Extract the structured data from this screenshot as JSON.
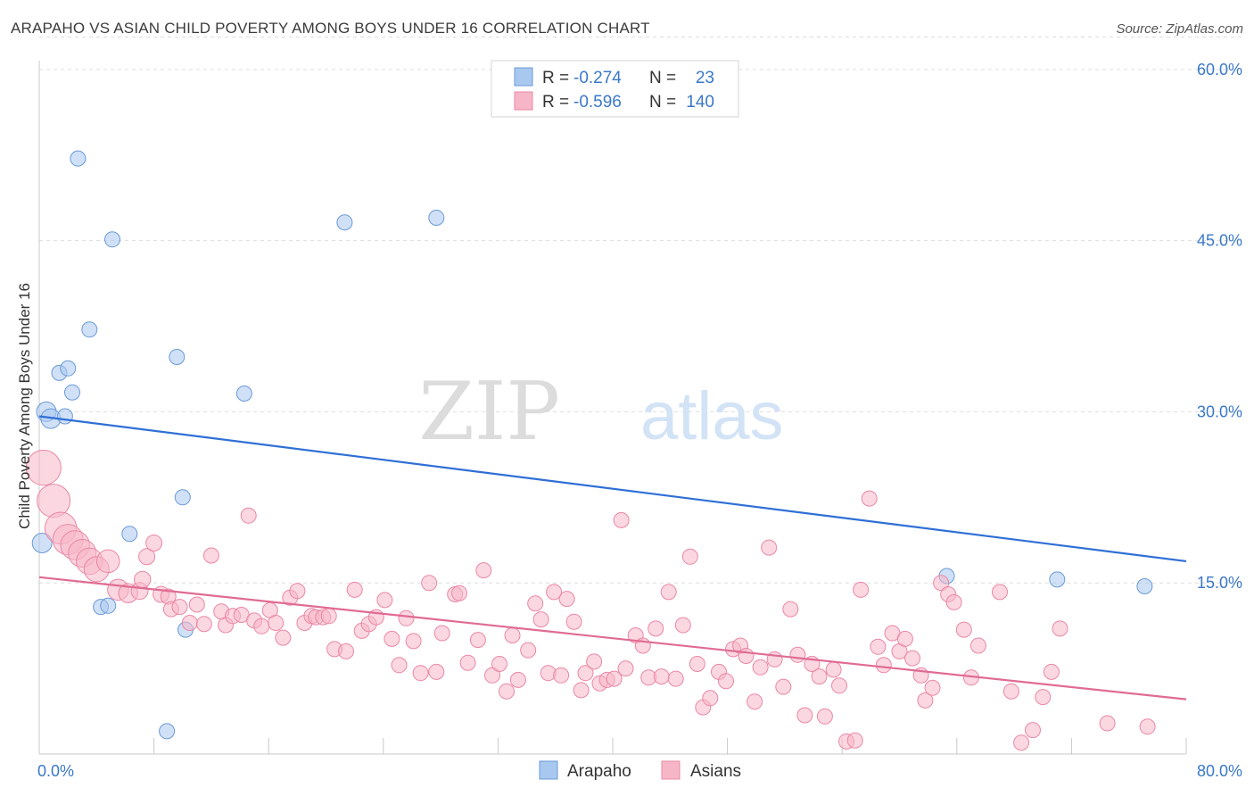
{
  "title": "ARAPAHO VS ASIAN CHILD POVERTY AMONG BOYS UNDER 16 CORRELATION CHART",
  "source": "Source: ZipAtlas.com",
  "watermark": {
    "zip": "ZIP",
    "atlas": "atlas"
  },
  "legend": {
    "entries": [
      {
        "name": "Arapaho",
        "r_label": "R =",
        "r_value": "-0.274",
        "n_label": "N =",
        "n_value": "23",
        "color": "#a9c8f0"
      },
      {
        "name": "Asians",
        "r_label": "R =",
        "r_value": "-0.596",
        "n_label": "N =",
        "n_value": "140",
        "color": "#f7b6c8"
      }
    ]
  },
  "chart_data": {
    "type": "scatter",
    "title": "ARAPAHO VS ASIAN CHILD POVERTY AMONG BOYS UNDER 16 CORRELATION CHART",
    "xlabel": "",
    "ylabel": "Child Poverty Among Boys Under 16",
    "xlim": [
      0,
      80
    ],
    "ylim": [
      0,
      63
    ],
    "y_ticks": [
      15,
      30,
      45,
      60
    ],
    "y_tick_labels": [
      "15.0%",
      "30.0%",
      "45.0%",
      "60.0%"
    ],
    "x_tick_labels": [
      "0.0%",
      "80.0%"
    ],
    "grid": true,
    "legend_position": "top-center",
    "series": [
      {
        "name": "Arapaho",
        "color": "#a9c8f0",
        "stroke": "#6b9ad8",
        "trend": {
          "x": [
            0,
            80
          ],
          "y": [
            29.6,
            16.9
          ],
          "color": "#2f6fd6"
        },
        "points": [
          [
            2.7,
            52.2
          ],
          [
            5.1,
            45.1
          ],
          [
            21.3,
            46.6
          ],
          [
            27.7,
            47.0
          ],
          [
            3.5,
            37.2
          ],
          [
            9.6,
            34.8
          ],
          [
            1.4,
            33.4
          ],
          [
            2.0,
            33.8
          ],
          [
            14.3,
            31.6
          ],
          [
            2.3,
            31.7
          ],
          [
            0.5,
            30.0
          ],
          [
            0.8,
            29.4
          ],
          [
            1.8,
            29.6
          ],
          [
            10.0,
            22.5
          ],
          [
            0.2,
            18.5
          ],
          [
            6.3,
            19.3
          ],
          [
            4.3,
            12.9
          ],
          [
            4.8,
            13.0
          ],
          [
            10.2,
            10.9
          ],
          [
            63.3,
            15.6
          ],
          [
            71.0,
            15.3
          ],
          [
            77.1,
            14.7
          ],
          [
            8.9,
            2.0
          ]
        ]
      },
      {
        "name": "Asians",
        "color": "#f7b6c8",
        "stroke": "#ea88a5",
        "trend": {
          "x": [
            0,
            80
          ],
          "y": [
            15.5,
            4.8
          ],
          "color": "#e06b93"
        },
        "points": [
          [
            0.3,
            25.1
          ],
          [
            1.0,
            22.2
          ],
          [
            1.5,
            19.8
          ],
          [
            2.0,
            18.8
          ],
          [
            2.5,
            18.3
          ],
          [
            3.0,
            17.6
          ],
          [
            3.5,
            16.9
          ],
          [
            4.0,
            16.2
          ],
          [
            4.8,
            16.9
          ],
          [
            5.5,
            14.4
          ],
          [
            6.2,
            14.1
          ],
          [
            7.0,
            14.3
          ],
          [
            7.5,
            17.3
          ],
          [
            8.0,
            18.5
          ],
          [
            7.2,
            15.3
          ],
          [
            8.5,
            14.0
          ],
          [
            9.0,
            13.8
          ],
          [
            9.2,
            12.7
          ],
          [
            9.8,
            12.9
          ],
          [
            10.5,
            11.5
          ],
          [
            11.0,
            13.1
          ],
          [
            11.5,
            11.4
          ],
          [
            12.0,
            17.4
          ],
          [
            12.7,
            12.5
          ],
          [
            13.0,
            11.3
          ],
          [
            13.5,
            12.1
          ],
          [
            14.1,
            12.2
          ],
          [
            14.6,
            20.9
          ],
          [
            15.0,
            11.7
          ],
          [
            15.5,
            11.2
          ],
          [
            16.1,
            12.6
          ],
          [
            16.5,
            11.5
          ],
          [
            17.0,
            10.2
          ],
          [
            17.5,
            13.7
          ],
          [
            18.0,
            14.3
          ],
          [
            18.5,
            11.5
          ],
          [
            19.0,
            12.1
          ],
          [
            19.3,
            12.0
          ],
          [
            19.8,
            12.0
          ],
          [
            20.2,
            12.1
          ],
          [
            20.6,
            9.2
          ],
          [
            21.4,
            9.0
          ],
          [
            22.0,
            14.4
          ],
          [
            22.5,
            10.8
          ],
          [
            23.0,
            11.4
          ],
          [
            23.5,
            12.0
          ],
          [
            24.1,
            13.5
          ],
          [
            24.6,
            10.1
          ],
          [
            25.1,
            7.8
          ],
          [
            25.6,
            11.9
          ],
          [
            26.1,
            9.9
          ],
          [
            26.6,
            7.1
          ],
          [
            27.2,
            15.0
          ],
          [
            27.7,
            7.2
          ],
          [
            28.1,
            10.6
          ],
          [
            29.0,
            14.0
          ],
          [
            29.3,
            14.1
          ],
          [
            29.9,
            8.0
          ],
          [
            30.6,
            10.0
          ],
          [
            31.0,
            16.1
          ],
          [
            31.6,
            6.9
          ],
          [
            32.1,
            7.9
          ],
          [
            32.6,
            5.5
          ],
          [
            33.0,
            10.4
          ],
          [
            33.4,
            6.5
          ],
          [
            34.1,
            9.1
          ],
          [
            34.6,
            13.2
          ],
          [
            35.0,
            11.8
          ],
          [
            35.5,
            7.1
          ],
          [
            35.9,
            14.2
          ],
          [
            36.4,
            6.9
          ],
          [
            36.8,
            13.6
          ],
          [
            37.3,
            11.6
          ],
          [
            37.8,
            5.6
          ],
          [
            38.1,
            7.1
          ],
          [
            38.7,
            8.1
          ],
          [
            39.1,
            6.2
          ],
          [
            39.6,
            6.5
          ],
          [
            40.1,
            6.6
          ],
          [
            40.6,
            20.5
          ],
          [
            40.9,
            7.5
          ],
          [
            41.6,
            10.4
          ],
          [
            42.1,
            9.5
          ],
          [
            42.5,
            6.7
          ],
          [
            43.0,
            11.0
          ],
          [
            43.4,
            6.8
          ],
          [
            43.9,
            14.2
          ],
          [
            44.4,
            6.6
          ],
          [
            44.9,
            11.3
          ],
          [
            45.4,
            17.3
          ],
          [
            45.9,
            7.9
          ],
          [
            46.3,
            4.1
          ],
          [
            46.8,
            4.9
          ],
          [
            47.4,
            7.2
          ],
          [
            47.9,
            6.4
          ],
          [
            48.4,
            9.2
          ],
          [
            48.9,
            9.5
          ],
          [
            49.3,
            8.6
          ],
          [
            49.9,
            4.6
          ],
          [
            50.3,
            7.6
          ],
          [
            50.9,
            18.1
          ],
          [
            51.3,
            8.3
          ],
          [
            51.9,
            5.9
          ],
          [
            52.4,
            12.7
          ],
          [
            52.9,
            8.7
          ],
          [
            53.4,
            3.4
          ],
          [
            53.9,
            7.9
          ],
          [
            54.4,
            6.8
          ],
          [
            54.8,
            3.3
          ],
          [
            55.4,
            7.4
          ],
          [
            55.8,
            6.0
          ],
          [
            56.3,
            1.1
          ],
          [
            56.9,
            1.2
          ],
          [
            57.3,
            14.4
          ],
          [
            57.9,
            22.4
          ],
          [
            58.5,
            9.4
          ],
          [
            58.9,
            7.8
          ],
          [
            59.5,
            10.6
          ],
          [
            60.0,
            9.0
          ],
          [
            60.4,
            10.1
          ],
          [
            60.9,
            8.4
          ],
          [
            61.5,
            6.9
          ],
          [
            61.8,
            4.7
          ],
          [
            62.3,
            5.8
          ],
          [
            62.9,
            15.0
          ],
          [
            63.4,
            14.0
          ],
          [
            63.8,
            13.3
          ],
          [
            64.5,
            10.9
          ],
          [
            65.0,
            6.7
          ],
          [
            65.5,
            9.5
          ],
          [
            67.0,
            14.2
          ],
          [
            67.8,
            5.5
          ],
          [
            68.5,
            1.0
          ],
          [
            69.3,
            2.1
          ],
          [
            70.0,
            5.0
          ],
          [
            70.6,
            7.2
          ],
          [
            71.2,
            11.0
          ],
          [
            74.5,
            2.7
          ],
          [
            77.3,
            2.4
          ]
        ]
      }
    ]
  }
}
